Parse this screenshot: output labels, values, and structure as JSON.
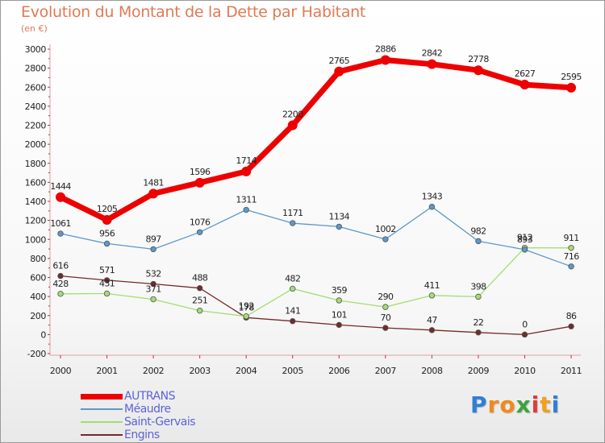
{
  "title": "Evolution du Montant de la Dette par Habitant",
  "subtitle": "(en €)",
  "logo": {
    "text": "Proxiti",
    "letters": [
      "P",
      "r",
      "o",
      "x",
      "i",
      "t",
      "i"
    ],
    "colors": [
      "#2f7fd6",
      "#f08a1c",
      "#f08a1c",
      "#3da33d",
      "#e03a3a",
      "#f0a020",
      "#2f7fd6"
    ]
  },
  "chart_data": {
    "type": "line",
    "title": "Evolution du Montant de la Dette par Habitant",
    "subtitle": "(en €)",
    "xlabel": "",
    "ylabel": "",
    "x": [
      "2000",
      "2001",
      "2002",
      "2003",
      "2004",
      "2005",
      "2006",
      "2007",
      "2008",
      "2009",
      "2010",
      "2011"
    ],
    "ylim": [
      -200,
      3000
    ],
    "yticks": [
      "-200",
      "0",
      "200",
      "400",
      "600",
      "800",
      "1000",
      "1200",
      "1400",
      "1600",
      "1800",
      "2000",
      "2200",
      "2400",
      "2600",
      "2800",
      "3000"
    ],
    "grid": false,
    "legend_position": "bottom-left",
    "series": [
      {
        "name": "AUTRANS",
        "color": "#ee0000",
        "values": [
          1444,
          1205,
          1481,
          1596,
          1714,
          2200,
          2765,
          2886,
          2842,
          2778,
          2627,
          2595
        ],
        "labels": [
          "1444",
          "1205",
          "1481",
          "1596",
          "1714",
          "2200",
          "2765",
          "2886",
          "2842",
          "2778",
          "2627",
          "2595"
        ]
      },
      {
        "name": "Méaudre",
        "color": "#5b98cd",
        "values": [
          1061,
          956,
          897,
          1076,
          1311,
          1171,
          1134,
          1002,
          1343,
          982,
          893,
          716
        ],
        "labels": [
          "1061",
          "956",
          "897",
          "1076",
          "1311",
          "1171",
          "1134",
          "1002",
          "1343",
          "982",
          "893",
          "716"
        ]
      },
      {
        "name": "Saint-Gervais",
        "color": "#a3dd72",
        "values": [
          428,
          431,
          371,
          251,
          192,
          482,
          359,
          290,
          411,
          398,
          912,
          911
        ],
        "labels": [
          "428",
          "431",
          "371",
          "251",
          "192",
          "482",
          "359",
          "290",
          "411",
          "398",
          "912",
          "911"
        ]
      },
      {
        "name": "Engins",
        "color": "#742a2a",
        "values": [
          616,
          571,
          532,
          488,
          178,
          141,
          101,
          70,
          47,
          22,
          0,
          86
        ],
        "labels": [
          "616",
          "571",
          "532",
          "488",
          "178",
          "141",
          "101",
          "70",
          "47",
          "22",
          "0",
          "86"
        ]
      }
    ]
  }
}
